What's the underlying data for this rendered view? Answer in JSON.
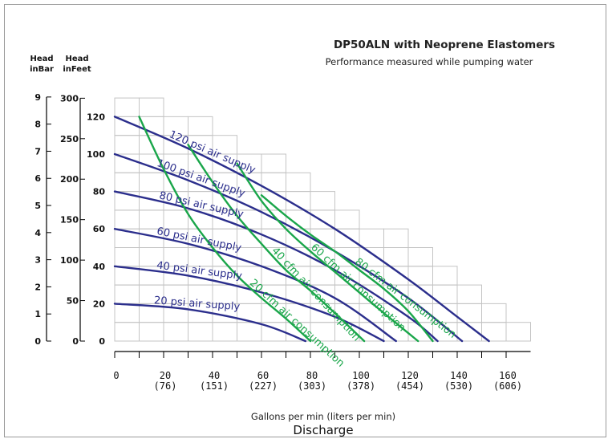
{
  "chart_data": {
    "type": "line",
    "title": "DP50ALN with Neoprene Elastomers",
    "subtitle": "Performance measured while pumping water",
    "xlabel": "Gallons per min (liters per min)",
    "xlabel2": "Discharge",
    "axis_headers": {
      "bar_line1": "Head",
      "bar_line2": "inBar",
      "feet_line1": "Head",
      "feet_line2": "inFeet"
    },
    "xlim": [
      0,
      170
    ],
    "ylim_psi": [
      0,
      130
    ],
    "x_ticks": [
      {
        "value": 0,
        "gpm": "0",
        "lpm": ""
      },
      {
        "value": 20,
        "gpm": "20",
        "lpm": "(76)"
      },
      {
        "value": 40,
        "gpm": "40",
        "lpm": "(151)"
      },
      {
        "value": 60,
        "gpm": "60",
        "lpm": "(227)"
      },
      {
        "value": 80,
        "gpm": "80",
        "lpm": "(303)"
      },
      {
        "value": 100,
        "gpm": "100",
        "lpm": "(378)"
      },
      {
        "value": 120,
        "gpm": "120",
        "lpm": "(454)"
      },
      {
        "value": 140,
        "gpm": "140",
        "lpm": "(530)"
      },
      {
        "value": 160,
        "gpm": "160",
        "lpm": "(606)"
      }
    ],
    "psi_ticks": [
      "0",
      "20",
      "40",
      "60",
      "80",
      "100",
      "120"
    ],
    "feet_ticks": [
      "0",
      "50",
      "100",
      "150",
      "200",
      "250",
      "300"
    ],
    "bar_ticks": [
      "0",
      "1",
      "2",
      "3",
      "4",
      "5",
      "6",
      "7",
      "8",
      "9"
    ],
    "grid": true,
    "colors": {
      "air_supply": "#2b2e8c",
      "air_consumption": "#1aa64a",
      "axis": "#000000",
      "grid": "#c4c4c4"
    },
    "series": [
      {
        "name": "120 psi air supply",
        "group": "air_supply",
        "x": [
          0,
          30,
          60,
          90,
          120,
          140,
          153
        ],
        "y": [
          120,
          103,
          83,
          60,
          33,
          13,
          0
        ]
      },
      {
        "name": "100 psi air supply",
        "group": "air_supply",
        "x": [
          0,
          30,
          60,
          90,
          120,
          142
        ],
        "y": [
          100,
          86,
          69,
          48,
          23,
          0
        ]
      },
      {
        "name": "80 psi air supply",
        "group": "air_supply",
        "x": [
          0,
          30,
          60,
          90,
          120,
          132
        ],
        "y": [
          80,
          71,
          57,
          38,
          13,
          0
        ]
      },
      {
        "name": "60 psi air supply",
        "group": "air_supply",
        "x": [
          0,
          30,
          60,
          90,
          115
        ],
        "y": [
          60,
          52,
          40,
          23,
          0
        ]
      },
      {
        "name": "40 psi air supply",
        "group": "air_supply",
        "x": [
          0,
          30,
          60,
          90,
          110
        ],
        "y": [
          40,
          35,
          26,
          13,
          0
        ]
      },
      {
        "name": "20 psi air supply",
        "group": "air_supply",
        "x": [
          0,
          30,
          60,
          78
        ],
        "y": [
          20,
          17,
          9,
          0
        ]
      },
      {
        "name": "20 cfm air consumption",
        "group": "air_consumption",
        "x": [
          10,
          20,
          30,
          40,
          50,
          60,
          70,
          80
        ],
        "y": [
          120,
          92,
          68,
          50,
          35,
          23,
          12,
          0
        ]
      },
      {
        "name": "40 cfm air consumption",
        "group": "air_consumption",
        "x": [
          30,
          40,
          50,
          60,
          70,
          80,
          90,
          102
        ],
        "y": [
          105,
          85,
          67,
          52,
          38,
          27,
          15,
          0
        ]
      },
      {
        "name": "60 cfm air consumption",
        "group": "air_consumption",
        "x": [
          50,
          60,
          70,
          80,
          90,
          100,
          110,
          124
        ],
        "y": [
          95,
          75,
          60,
          48,
          37,
          26,
          15,
          0
        ]
      },
      {
        "name": "80 cfm air consumption",
        "group": "air_consumption",
        "x": [
          60,
          70,
          80,
          90,
          100,
          110,
          120,
          130
        ],
        "y": [
          78,
          67,
          57,
          48,
          38,
          28,
          16,
          0
        ]
      }
    ]
  }
}
